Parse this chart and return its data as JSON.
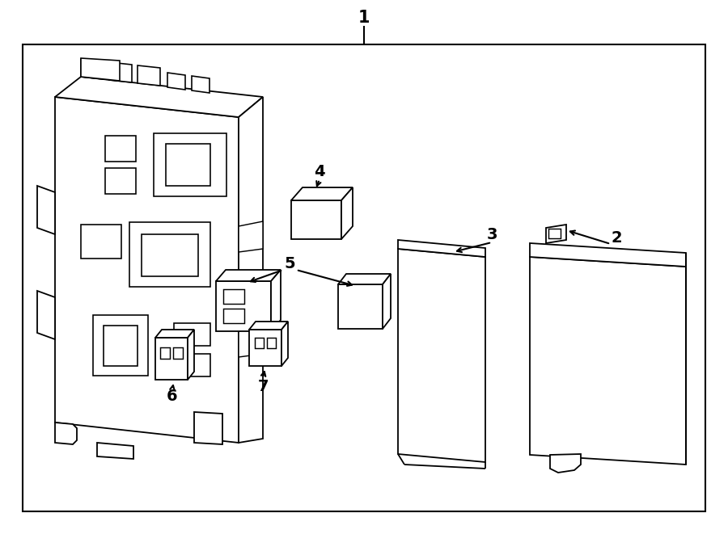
{
  "bg": "#ffffff",
  "lc": "#000000",
  "lw": 1.3,
  "fig_w": 9.0,
  "fig_h": 6.61,
  "dpi": 100
}
